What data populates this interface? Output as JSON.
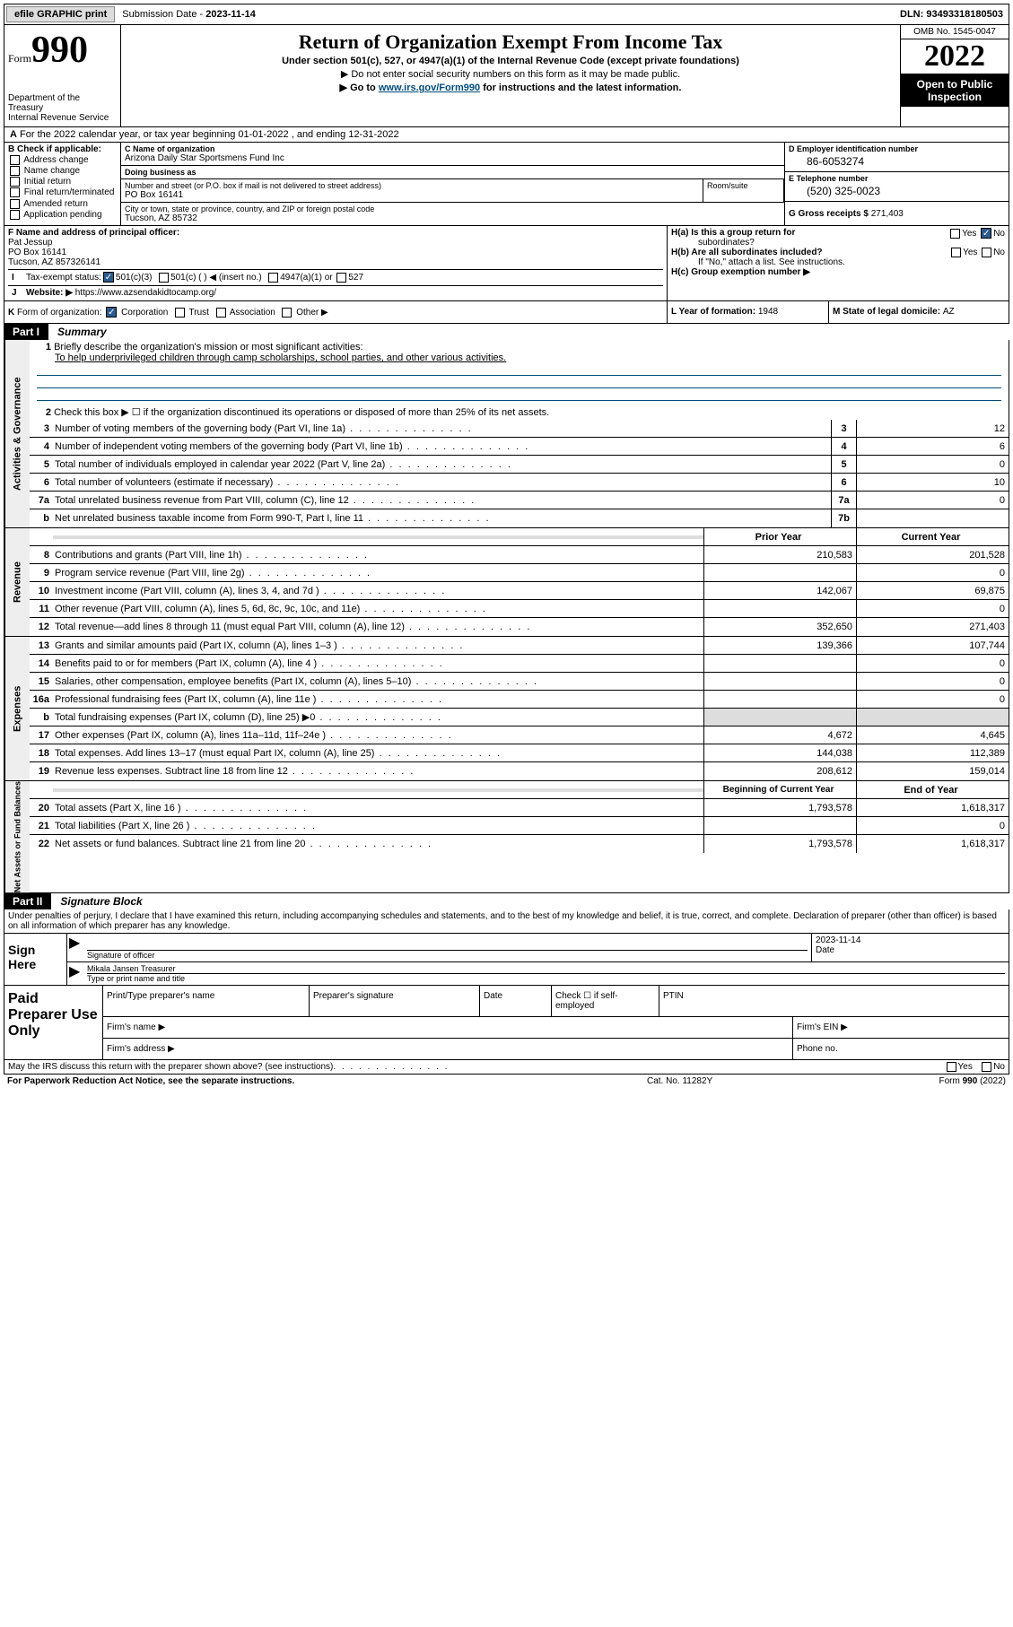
{
  "top_bar": {
    "efile_btn": "efile GRAPHIC print",
    "sub_date_label": "Submission Date - ",
    "sub_date": "2023-11-14",
    "dln_label": "DLN: ",
    "dln": "93493318180503"
  },
  "header": {
    "form_word": "Form",
    "form_num": "990",
    "dept": "Department of the Treasury\nInternal Revenue Service",
    "title": "Return of Organization Exempt From Income Tax",
    "subtitle": "Under section 501(c), 527, or 4947(a)(1) of the Internal Revenue Code (except private foundations)",
    "note1": "▶ Do not enter social security numbers on this form as it may be made public.",
    "note2_pre": "▶ Go to ",
    "note2_link": "www.irs.gov/Form990",
    "note2_post": " for instructions and the latest information.",
    "omb": "OMB No. 1545-0047",
    "year": "2022",
    "open_public1": "Open to Public",
    "open_public2": "Inspection"
  },
  "row_a": {
    "lead": "A",
    "text": "For the 2022 calendar year, or tax year beginning 01-01-2022   , and ending 12-31-2022"
  },
  "col_b": {
    "hdr": "B Check if applicable:",
    "items": [
      "Address change",
      "Name change",
      "Initial return",
      "Final return/terminated",
      "Amended return",
      "Application pending"
    ]
  },
  "col_c": {
    "name_lbl": "C Name of organization",
    "name": "Arizona Daily Star Sportsmens Fund Inc",
    "dba_lbl": "Doing business as",
    "dba": "",
    "street_lbl": "Number and street (or P.O. box if mail is not delivered to street address)",
    "street": "PO Box 16141",
    "room_lbl": "Room/suite",
    "city_lbl": "City or town, state or province, country, and ZIP or foreign postal code",
    "city": "Tucson, AZ  85732"
  },
  "col_d": {
    "ein_lbl": "D Employer identification number",
    "ein": "86-6053274",
    "tel_lbl": "E Telephone number",
    "tel": "(520) 325-0023",
    "gross_lbl": "G Gross receipts $ ",
    "gross": "271,403"
  },
  "row_f": {
    "lbl": "F Name and address of principal officer:",
    "name": "Pat Jessup",
    "addr1": "PO Box 16141",
    "addr2": "Tucson, AZ  857326141"
  },
  "row_h": {
    "ha_lbl": "H(a)  Is this a group return for",
    "ha_lbl2": "subordinates?",
    "hb_lbl": "H(b)  Are all subordinates included?",
    "hb_note": "If \"No,\" attach a list. See instructions.",
    "hc_lbl": "H(c)  Group exemption number ▶"
  },
  "row_i": {
    "lead": "I",
    "lbl": "Tax-exempt status:",
    "opt1": "501(c)(3)",
    "opt2": "501(c) (   ) ◀ (insert no.)",
    "opt3": "4947(a)(1) or",
    "opt4": "527"
  },
  "row_j": {
    "lead": "J",
    "lbl": "Website: ▶",
    "url": "https://www.azsendakidtocamp.org/"
  },
  "row_k": {
    "lead": "K",
    "lbl": "Form of organization:",
    "opts": [
      "Corporation",
      "Trust",
      "Association",
      "Other ▶"
    ]
  },
  "row_l": {
    "lbl": "L Year of formation: ",
    "val": "1948"
  },
  "row_m": {
    "lbl": "M State of legal domicile: ",
    "val": "AZ"
  },
  "part1": {
    "num": "Part I",
    "title": "Summary"
  },
  "summary": {
    "line1_lbl": "Briefly describe the organization's mission or most significant activities:",
    "line1_txt": "To help underprivileged children through camp scholarships, school parties, and other various activities.",
    "line2_txt": "Check this box ▶ ☐  if the organization discontinued its operations or disposed of more than 25% of its net assets.",
    "lines_3_7": [
      {
        "n": "3",
        "txt": "Number of voting members of the governing body (Part VI, line 1a)",
        "box": "3",
        "val": "12"
      },
      {
        "n": "4",
        "txt": "Number of independent voting members of the governing body (Part VI, line 1b)",
        "box": "4",
        "val": "6"
      },
      {
        "n": "5",
        "txt": "Total number of individuals employed in calendar year 2022 (Part V, line 2a)",
        "box": "5",
        "val": "0"
      },
      {
        "n": "6",
        "txt": "Total number of volunteers (estimate if necessary)",
        "box": "6",
        "val": "10"
      },
      {
        "n": "7a",
        "txt": "Total unrelated business revenue from Part VIII, column (C), line 12",
        "box": "7a",
        "val": "0"
      },
      {
        "n": "b",
        "txt": "Net unrelated business taxable income from Form 990-T, Part I, line 11",
        "box": "7b",
        "val": ""
      }
    ],
    "col_hdr_prior": "Prior Year",
    "col_hdr_curr": "Current Year",
    "revenue_lines": [
      {
        "n": "8",
        "txt": "Contributions and grants (Part VIII, line 1h)",
        "prior": "210,583",
        "curr": "201,528"
      },
      {
        "n": "9",
        "txt": "Program service revenue (Part VIII, line 2g)",
        "prior": "",
        "curr": "0"
      },
      {
        "n": "10",
        "txt": "Investment income (Part VIII, column (A), lines 3, 4, and 7d )",
        "prior": "142,067",
        "curr": "69,875"
      },
      {
        "n": "11",
        "txt": "Other revenue (Part VIII, column (A), lines 5, 6d, 8c, 9c, 10c, and 11e)",
        "prior": "",
        "curr": "0"
      },
      {
        "n": "12",
        "txt": "Total revenue—add lines 8 through 11 (must equal Part VIII, column (A), line 12)",
        "prior": "352,650",
        "curr": "271,403"
      }
    ],
    "expense_lines": [
      {
        "n": "13",
        "txt": "Grants and similar amounts paid (Part IX, column (A), lines 1–3 )",
        "prior": "139,366",
        "curr": "107,744"
      },
      {
        "n": "14",
        "txt": "Benefits paid to or for members (Part IX, column (A), line 4 )",
        "prior": "",
        "curr": "0"
      },
      {
        "n": "15",
        "txt": "Salaries, other compensation, employee benefits (Part IX, column (A), lines 5–10)",
        "prior": "",
        "curr": "0"
      },
      {
        "n": "16a",
        "txt": "Professional fundraising fees (Part IX, column (A), line 11e )",
        "prior": "",
        "curr": "0"
      },
      {
        "n": "b",
        "txt": "Total fundraising expenses (Part IX, column (D), line 25) ▶0",
        "prior": "SHADED",
        "curr": "SHADED"
      },
      {
        "n": "17",
        "txt": "Other expenses (Part IX, column (A), lines 11a–11d, 11f–24e )",
        "prior": "4,672",
        "curr": "4,645"
      },
      {
        "n": "18",
        "txt": "Total expenses. Add lines 13–17 (must equal Part IX, column (A), line 25)",
        "prior": "144,038",
        "curr": "112,389"
      },
      {
        "n": "19",
        "txt": "Revenue less expenses. Subtract line 18 from line 12",
        "prior": "208,612",
        "curr": "159,014"
      }
    ],
    "col_hdr_boy": "Beginning of Current Year",
    "col_hdr_eoy": "End of Year",
    "netassets_lines": [
      {
        "n": "20",
        "txt": "Total assets (Part X, line 16 )",
        "prior": "1,793,578",
        "curr": "1,618,317"
      },
      {
        "n": "21",
        "txt": "Total liabilities (Part X, line 26 )",
        "prior": "",
        "curr": "0"
      },
      {
        "n": "22",
        "txt": "Net assets or fund balances. Subtract line 21 from line 20",
        "prior": "1,793,578",
        "curr": "1,618,317"
      }
    ],
    "sidebars": [
      "Activities & Governance",
      "Revenue",
      "Expenses",
      "Net Assets or Fund Balances"
    ]
  },
  "part2": {
    "num": "Part II",
    "title": "Signature Block"
  },
  "sig": {
    "penalty": "Under penalties of perjury, I declare that I have examined this return, including accompanying schedules and statements, and to the best of my knowledge and belief, it is true, correct, and complete. Declaration of preparer (other than officer) is based on all information of which preparer has any knowledge.",
    "sign_here": "Sign Here",
    "sig_officer_lbl": "Signature of officer",
    "date_lbl": "Date",
    "sig_date": "2023-11-14",
    "name_title": "Mikala Jansen  Treasurer",
    "name_title_lbl": "Type or print name and title",
    "paid_hdr": "Paid Preparer Use Only",
    "prep_name_lbl": "Print/Type preparer's name",
    "prep_sig_lbl": "Preparer's signature",
    "prep_date_lbl": "Date",
    "check_if_lbl": "Check ☐ if self-employed",
    "ptin_lbl": "PTIN",
    "firm_name_lbl": "Firm's name    ▶",
    "firm_ein_lbl": "Firm's EIN ▶",
    "firm_addr_lbl": "Firm's address ▶",
    "phone_lbl": "Phone no."
  },
  "bottom": {
    "discuss": "May the IRS discuss this return with the preparer shown above? (see instructions)",
    "yes": "Yes",
    "no": "No"
  },
  "footer": {
    "left": "For Paperwork Reduction Act Notice, see the separate instructions.",
    "mid": "Cat. No. 11282Y",
    "right": "Form 990 (2022)"
  },
  "colors": {
    "link": "#004b7a",
    "black": "#000000",
    "check_bg": "#2b5a8c"
  }
}
